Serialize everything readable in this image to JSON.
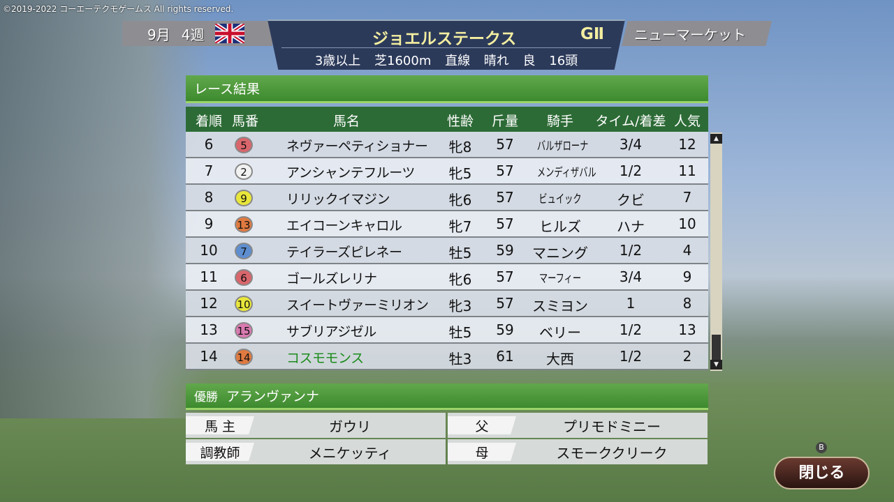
{
  "copyright": "©2019-2022 コーエーテクモゲームス All rights reserved.",
  "header": {
    "month": "9月",
    "week": "4週",
    "flag_icon": "uk-flag-icon",
    "race_name": "ジョエルステークス",
    "grade": "GⅡ",
    "course": "ニューマーケット",
    "conditions": "3歳以上 芝1600m 直線 晴れ 良 16頭"
  },
  "results": {
    "title": "レース結果",
    "columns": [
      "着順",
      "馬番",
      "馬名",
      "性齢",
      "斤量",
      "騎手",
      "タイム/着差",
      "人気"
    ],
    "rows": [
      {
        "rank": "6",
        "num": "5",
        "color": "#d9666c",
        "name": "ネヴァーペティショナー",
        "sexage": "牝8",
        "weight": "57",
        "jockey": "バルザローナ",
        "margin": "3/4",
        "pop": "12"
      },
      {
        "rank": "7",
        "num": "2",
        "color": "#f2f2f2",
        "name": "アンシャンテフルーツ",
        "sexage": "牝5",
        "weight": "57",
        "jockey": "メンディザバル",
        "margin": "1/2",
        "pop": "11"
      },
      {
        "rank": "8",
        "num": "9",
        "color": "#e8e63a",
        "name": "リリックイマジン",
        "sexage": "牝6",
        "weight": "57",
        "jockey": "ビュイック",
        "margin": "クビ",
        "pop": "7"
      },
      {
        "rank": "9",
        "num": "13",
        "color": "#e07a40",
        "name": "エイコーンキャロル",
        "sexage": "牝7",
        "weight": "57",
        "jockey": "ヒルズ",
        "margin": "ハナ",
        "pop": "10"
      },
      {
        "rank": "10",
        "num": "7",
        "color": "#5e8ed0",
        "name": "テイラーズピレネー",
        "sexage": "牡5",
        "weight": "59",
        "jockey": "マニング",
        "margin": "1/2",
        "pop": "4"
      },
      {
        "rank": "11",
        "num": "6",
        "color": "#d9666c",
        "name": "ゴールズレリナ",
        "sexage": "牝6",
        "weight": "57",
        "jockey": "マーフィー",
        "margin": "3/4",
        "pop": "9"
      },
      {
        "rank": "12",
        "num": "10",
        "color": "#e8e63a",
        "name": "スイートヴァーミリオン",
        "sexage": "牝3",
        "weight": "57",
        "jockey": "スミヨン",
        "margin": "1",
        "pop": "8"
      },
      {
        "rank": "13",
        "num": "15",
        "color": "#d97ab0",
        "name": "サブリアジゼル",
        "sexage": "牡5",
        "weight": "59",
        "jockey": "ベリー",
        "margin": "1/2",
        "pop": "13"
      },
      {
        "rank": "14",
        "num": "14",
        "color": "#e07a40",
        "name": "コスモモンス",
        "sexage": "牡3",
        "weight": "61",
        "jockey": "大西",
        "margin": "1/2",
        "pop": "2",
        "highlight": "#1a8a1a"
      }
    ]
  },
  "winner": {
    "label": "優勝",
    "name": "アランヴァンナ",
    "owner_label": "馬 主",
    "owner": "ガウリ",
    "trainer_label": "調教師",
    "trainer": "メニケッティ",
    "sire_label": "父",
    "sire": "プリモドミニー",
    "dam_label": "母",
    "dam": "スモーククリーク"
  },
  "close_button": {
    "key": "B",
    "label": "閉じる"
  }
}
